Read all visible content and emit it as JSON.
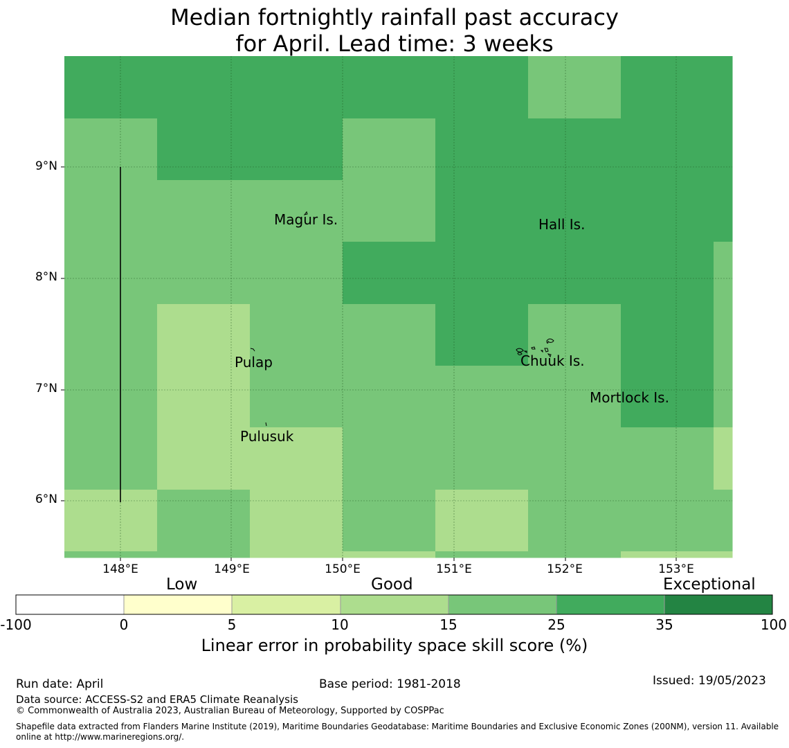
{
  "title": {
    "line1": "Median fortnightly rainfall past accuracy",
    "line2": "for April. Lead time: 3 weeks"
  },
  "map": {
    "x_ticks": [
      "148°E",
      "149°E",
      "150°E",
      "151°E",
      "152°E",
      "153°E"
    ],
    "y_ticks": [
      "9°N",
      "8°N",
      "7°N",
      "6°N"
    ],
    "lon_range": [
      147.5,
      153.5
    ],
    "lat_range": [
      5.5,
      10.0
    ],
    "places": [
      {
        "name": "Magur Is.",
        "lon": 149.68,
        "lat": 8.52
      },
      {
        "name": "Hall Is.",
        "lon": 151.97,
        "lat": 8.47
      },
      {
        "name": "Pulap",
        "lon": 149.2,
        "lat": 7.25
      },
      {
        "name": "Chuuk Is.",
        "lon": 151.87,
        "lat": 7.27
      },
      {
        "name": "Mortlock Is.",
        "lon": 152.6,
        "lat": 6.94
      },
      {
        "name": "Pulusuk",
        "lon": 149.33,
        "lat": 6.62
      }
    ],
    "colors": {
      "c0": "#ffffcc",
      "c5": "#d9f0a3",
      "c10": "#addd8e",
      "c15": "#78c679",
      "c25": "#41ab5d",
      "c35": "#238443"
    }
  },
  "colorbar": {
    "categories": [
      "Low",
      "Good",
      "Exceptional"
    ],
    "ticks": [
      "-100",
      "0",
      "5",
      "10",
      "15",
      "25",
      "35",
      "100"
    ],
    "colors": [
      "#ffffff",
      "#ffffcc",
      "#d9f0a3",
      "#addd8e",
      "#78c679",
      "#41ab5d",
      "#238443"
    ],
    "label": "Linear error in probability space skill score (%)"
  },
  "footer": {
    "run_date": "Run date: April",
    "base_period": "Base period: 1981-2018",
    "issued": "Issued: 19/05/2023",
    "data_source": "Data source: ACCESS-S2 and ERA5 Climate Reanalysis",
    "copyright": "© Commonwealth of Australia 2023, Australian Bureau of Meteorology, Supported by COSPPac",
    "shapefile_line1": "Shapefile data extracted from Flanders Marine Institute (2019), Maritime Boundaries Geodatabase: Maritime Boundaries and Exclusive Economic Zones (200NM), version 11. Available",
    "shapefile_line2": "online at http://www.marineregions.org/."
  }
}
